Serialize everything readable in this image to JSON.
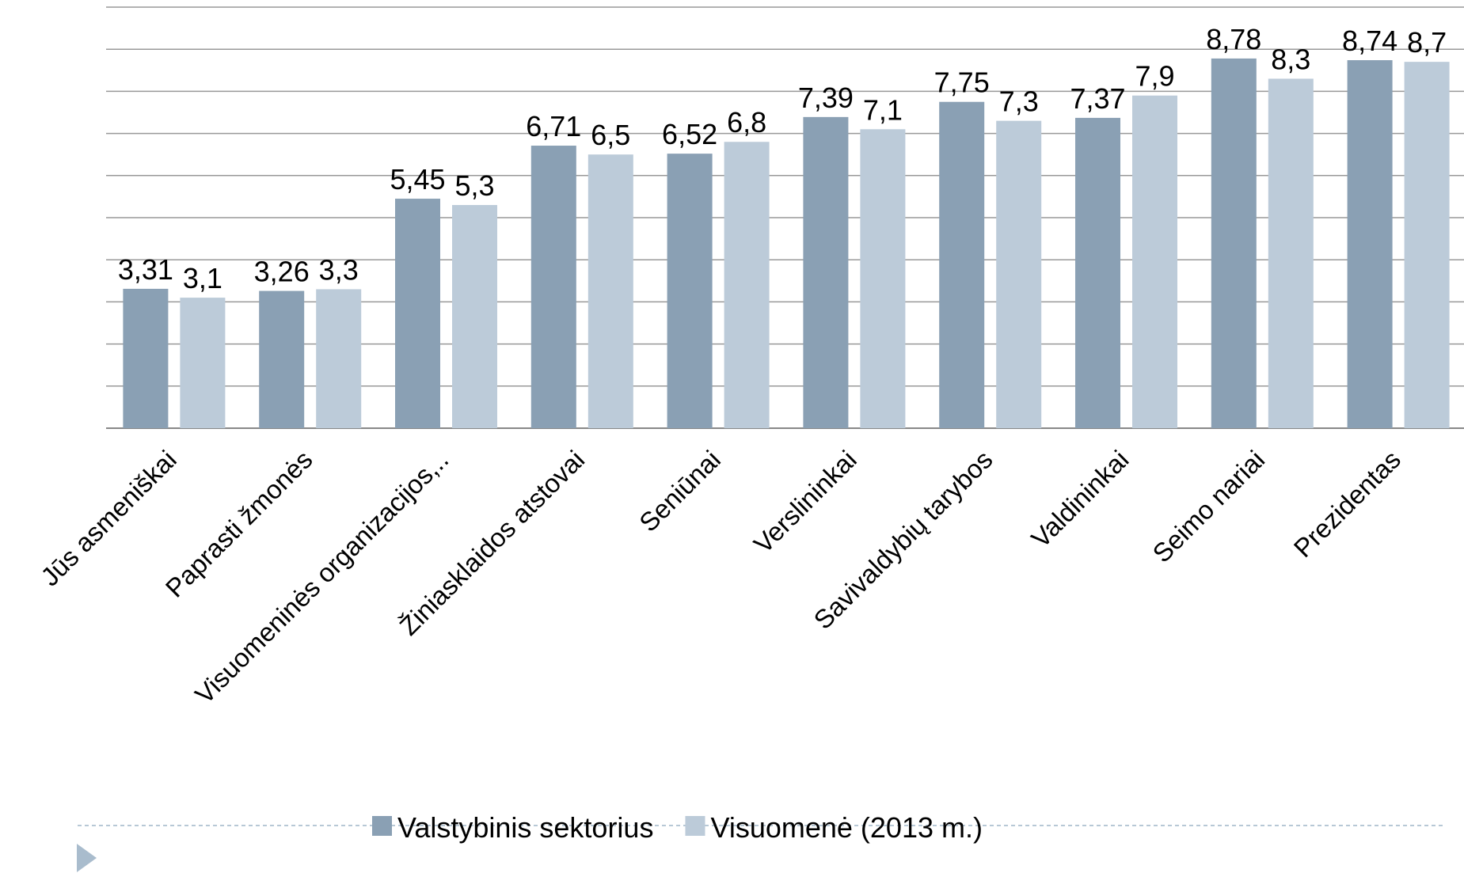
{
  "chart_data": {
    "type": "bar",
    "categories": [
      "Jūs asmeniškai",
      "Paprasti žmonės",
      "Visuomeninės organizacijos,..",
      "Žiniasklaidos atstovai",
      "Seniūnai",
      "Verslininkai",
      "Savivaldybių tarybos",
      "Valdininkai",
      "Seimo nariai",
      "Prezidentas"
    ],
    "series": [
      {
        "name": "Valstybinis sektorius",
        "color": "#8aa0b4",
        "values": [
          3.31,
          3.26,
          5.45,
          6.71,
          6.52,
          7.39,
          7.75,
          7.37,
          8.78,
          8.74
        ],
        "value_labels": [
          "3,31",
          "3,26",
          "5,45",
          "6,71",
          "6,52",
          "7,39",
          "7,75",
          "7,37",
          "8,78",
          "8,74"
        ]
      },
      {
        "name": "Visuomenė (2013 m.)",
        "color": "#bccbd9",
        "values": [
          3.1,
          3.3,
          5.3,
          6.5,
          6.8,
          7.1,
          7.3,
          7.9,
          8.3,
          8.7
        ],
        "value_labels": [
          "3,1",
          "3,3",
          "5,3",
          "6,5",
          "6,8",
          "7,1",
          "7,3",
          "7,9",
          "8,3",
          "8,7"
        ]
      }
    ],
    "ylim": [
      0,
      10
    ],
    "yticks": [
      0,
      1,
      2,
      3,
      4,
      5,
      6,
      7,
      8,
      9,
      10
    ],
    "grid": true,
    "legend": "bottom"
  }
}
